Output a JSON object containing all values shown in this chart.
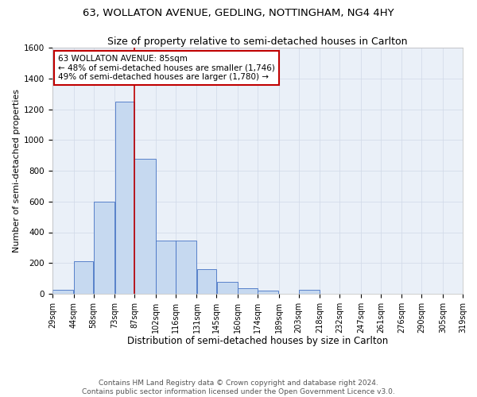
{
  "title1": "63, WOLLATON AVENUE, GEDLING, NOTTINGHAM, NG4 4HY",
  "title2": "Size of property relative to semi-detached houses in Carlton",
  "xlabel": "Distribution of semi-detached houses by size in Carlton",
  "ylabel": "Number of semi-detached properties",
  "footer1": "Contains HM Land Registry data © Crown copyright and database right 2024.",
  "footer2": "Contains public sector information licensed under the Open Government Licence v3.0.",
  "annotation_line1": "63 WOLLATON AVENUE: 85sqm",
  "annotation_line2": "← 48% of semi-detached houses are smaller (1,746)",
  "annotation_line3": "49% of semi-detached houses are larger (1,780) →",
  "property_size": 85,
  "bar_left_edges": [
    29,
    44,
    58,
    73,
    87,
    102,
    116,
    131,
    145,
    160,
    174,
    189,
    203,
    218,
    232,
    247,
    261,
    276,
    290,
    305
  ],
  "bar_widths": [
    15,
    14,
    15,
    14,
    15,
    14,
    15,
    14,
    15,
    14,
    15,
    14,
    15,
    14,
    15,
    14,
    15,
    14,
    15,
    14
  ],
  "bar_heights": [
    25,
    210,
    600,
    1250,
    875,
    345,
    345,
    160,
    75,
    35,
    20,
    0,
    25,
    0,
    0,
    0,
    0,
    0,
    0,
    0
  ],
  "tick_labels": [
    "29sqm",
    "44sqm",
    "58sqm",
    "73sqm",
    "87sqm",
    "102sqm",
    "116sqm",
    "131sqm",
    "145sqm",
    "160sqm",
    "174sqm",
    "189sqm",
    "203sqm",
    "218sqm",
    "232sqm",
    "247sqm",
    "261sqm",
    "276sqm",
    "290sqm",
    "305sqm",
    "319sqm"
  ],
  "bar_color": "#c6d9f0",
  "bar_edge_color": "#4472c4",
  "vline_color": "#c00000",
  "vline_x": 87,
  "ylim": [
    0,
    1600
  ],
  "yticks": [
    0,
    200,
    400,
    600,
    800,
    1000,
    1200,
    1400,
    1600
  ],
  "grid_color": "#d0d8e8",
  "background_color": "#eaf0f8",
  "box_color": "#c00000",
  "title1_fontsize": 9.5,
  "title2_fontsize": 9,
  "xlabel_fontsize": 8.5,
  "ylabel_fontsize": 8,
  "tick_fontsize": 7,
  "annotation_fontsize": 7.5,
  "footer_fontsize": 6.5,
  "xlim_left": 29,
  "xlim_right": 319
}
